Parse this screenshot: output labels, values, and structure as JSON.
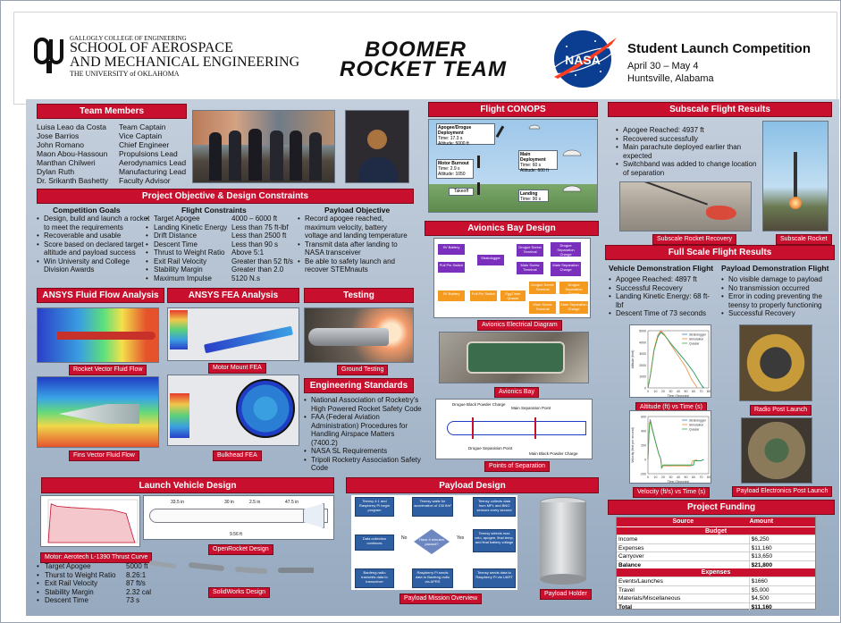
{
  "header": {
    "college_small": "GALLOGLY COLLEGE OF ENGINEERING",
    "school_line1": "SCHOOL OF AEROSPACE",
    "school_line2": "AND MECHANICAL ENGINEERING",
    "university_line": "THE UNIVERSITY of OKLAHOMA",
    "team_logo_line1": "BOOMER",
    "team_logo_line2": "ROCKET TEAM",
    "nasa_logo": "NASA",
    "event_title": "Student Launch Competition",
    "event_dates": "April 30 – May 4",
    "event_location": "Huntsville, Alabama"
  },
  "team": {
    "title": "Team Members",
    "members": [
      {
        "name": "Luisa Leao da Costa",
        "role": "Team Captain"
      },
      {
        "name": "Jose Barrios",
        "role": "Vice Captain"
      },
      {
        "name": "John Romano",
        "role": "Chief Engineer"
      },
      {
        "name": "Maon Abou-Hassoun",
        "role": "Propulsions Lead"
      },
      {
        "name": "Manthan Chilweri",
        "role": "Aerodynamics Lead"
      },
      {
        "name": "Dylan Ruth",
        "role": "Manufacturing Lead"
      },
      {
        "name": "Dr. Srikanth Bashetty",
        "role": "Faculty Advisor"
      }
    ]
  },
  "objectives": {
    "title": "Project Objective & Design Constraints",
    "goals_title": "Competition Goals",
    "goals": [
      "Design, build and launch a rocket to meet the requirements",
      "Recoverable and usable",
      "Score based on declared target altitude and payload success",
      "Win University and College Division Awards"
    ],
    "constraints_title": "Flight Constraints",
    "constraints": [
      {
        "label": "Target Apogee",
        "value": "4000 – 6000 ft"
      },
      {
        "label": "Landing Kinetic Energy",
        "value": "Less than 75 ft-lbf"
      },
      {
        "label": "Drift Distance",
        "value": "Less than 2500 ft"
      },
      {
        "label": "Descent Time",
        "value": "Less than 90 s"
      },
      {
        "label": "Thrust to Weight Ratio",
        "value": "Above 5:1"
      },
      {
        "label": "Exit Rail Velocity",
        "value": "Greater than 52 ft/s"
      },
      {
        "label": "Stability Margin",
        "value": "Greater than 2.0"
      },
      {
        "label": "Maximum Impulse",
        "value": "5120 N.s"
      }
    ],
    "payload_title": "Payload Objective",
    "payload": [
      "Record apogee reached, maximum velocity, battery voltage and landing temperature",
      "Transmit data after landing to NASA transceiver",
      "Be able to safety launch and recover STEMnauts"
    ]
  },
  "conops": {
    "title": "Flight CONOPS",
    "apogee_label": "Apogee/Drogue Deployment",
    "apogee_time": "Time: 17.3 s",
    "apogee_alt": "Altitude: 5000 ft",
    "burnout_label": "Motor Burnout",
    "burnout_time": "Time: 2.9 s",
    "burnout_alt": "Altitude: 1050",
    "main_label": "Main Deployment",
    "main_time": "Time: 60 s",
    "main_alt": "Altitude: 600 ft",
    "takeoff_label": "Takeoff",
    "landing_label": "Landing",
    "landing_time": "Time: 90 s"
  },
  "subscale": {
    "title": "Subscale Flight Results",
    "bullets": [
      "Apogee Reached: 4937 ft",
      "Recovered successfully",
      "Main parachute deployed earlier than expected",
      "Switchband was added to change location of separation"
    ],
    "photo1_caption": "Subscale Rocket Recovery",
    "photo2_caption": "Subscale Rocket"
  },
  "avionics": {
    "title": "Avionics Bay Design",
    "blocks": [
      "9V Battery",
      "Stratologger",
      "Drogue Screw Terminal",
      "Drogue Separation Charge",
      "Pull Pin Switch",
      "Main Screw Terminal",
      "Main Separation Charge",
      "9V Battery",
      "Pull Pin Switch",
      "EggTimer Quasar",
      "Drogue Screw Terminal",
      "Drogue Separation Charge",
      "Main Screw Terminal",
      "Main Separation Charge"
    ],
    "diagram_caption": "Avionics Electrical Diagram",
    "bay_caption": "Avionics Bay",
    "sep_labels": [
      "Drogue Black Powder Charge",
      "Main Separation Point",
      "Drogue Separation Point",
      "Main Black Powder Charge"
    ],
    "sep_caption": "Points of Separation"
  },
  "fullscale": {
    "title": "Full Scale Flight Results",
    "vehicle_title": "Vehicle Demonstration Flight",
    "vehicle_bullets": [
      "Apogee Reached: 4897 ft",
      "Successful Recovery",
      "Landing Kinetic Energy: 68 ft-lbf",
      "Descent Time of 73 seconds"
    ],
    "payload_title": "Payload Demonstration Flight",
    "payload_bullets": [
      "No visible damage to payload",
      "No transmission occurred",
      "Error in coding preventing the teensy to properly functioning",
      "Successful Recovery"
    ],
    "alt_caption": "Altitude (ft) vs Time (s)",
    "vel_caption": "Velocity (ft/s) vs Time (s)",
    "radio_caption": "Radio Post Launch",
    "electronics_caption": "Payload Electronics Post Launch"
  },
  "ansys_fluid": {
    "title": "ANSYS Fluid Flow Analysis",
    "caption1": "Rocket Vector Fluid Flow",
    "caption2": "Fins Vector Fluid Flow"
  },
  "ansys_fea": {
    "title": "ANSYS FEA Analysis",
    "caption1": "Motor Mount FEA",
    "caption2": "Bulkhead FEA"
  },
  "testing": {
    "title": "Testing",
    "caption": "Ground Testing"
  },
  "standards": {
    "title": "Engineering Standards",
    "bullets": [
      "National Association of Rocketry's High Powered Rocket Safety Code",
      "FAA (Federal Aviation Administration) Procedures for Handling Airspace Matters (7400.2)",
      "NASA SL Requirements",
      "Tripoli Rocketry Association Safety Code"
    ]
  },
  "launch": {
    "title": "Launch Vehicle Design",
    "thrust_caption": "Motor: Aerotech L-1390 Thrust Curve",
    "openrocket_caption": "OpenRocket Design",
    "dims": [
      "33.5 in",
      "30 in",
      "2.5 in",
      "47.5 in",
      "9.56 ft"
    ],
    "solidworks_caption": "SolidWorks Design",
    "specs": [
      {
        "label": "Target Apogee",
        "value": "5000 ft"
      },
      {
        "label": "Thurst to Weight Ratio",
        "value": "8.26:1"
      },
      {
        "label": "Exit Rail Velocity",
        "value": "87 ft/s"
      },
      {
        "label": "Stability Margin",
        "value": "2.32 cal"
      },
      {
        "label": "Descent Time",
        "value": "73 s"
      }
    ]
  },
  "payload_design": {
    "title": "Payload Design",
    "flow": [
      "Teensy 4.1 and Raspberry Pi begin program",
      "Teensy waits for acceleration of 130 ft/s²",
      "Teensy collects data from MPL and BNO sensors every second",
      "Data collection continues",
      "Have 4 minutes passed?",
      "Teensy selects max velo, apogee, final temp, and final battery voltage",
      "Baofeng radio transmits data to transceiver",
      "Raspberry Pi sends data to Baofeng radio via APRS",
      "Teensy sends data to Raspberry Pi via UART"
    ],
    "flow_no": "No",
    "flow_yes": "Yes",
    "flow_caption": "Payload Mission Overview",
    "holder_caption": "Payload Holder"
  },
  "funding": {
    "title": "Project Funding",
    "col_source": "Source",
    "col_amount": "Amount",
    "budget_header": "Budget",
    "budget_rows": [
      {
        "source": "Income",
        "amount": "$6,250"
      },
      {
        "source": "Expenses",
        "amount": "$11,160"
      },
      {
        "source": "Carryover",
        "amount": "$13,650"
      },
      {
        "source": "Balance",
        "amount": "$21,800"
      }
    ],
    "expenses_header": "Expenses",
    "expense_rows": [
      {
        "source": "Events/Launches",
        "amount": "$1660"
      },
      {
        "source": "Travel",
        "amount": "$5,000"
      },
      {
        "source": "Materials/Miscellaneous",
        "amount": "$4,500"
      },
      {
        "source": "Total",
        "amount": "$11,160"
      }
    ]
  },
  "chart_data": [
    {
      "type": "line",
      "title": "",
      "xlabel": "Time (Seconds)",
      "ylabel": "Altitude (feet)",
      "xlim": [
        0,
        80
      ],
      "ylim": [
        0,
        5000
      ],
      "xticks": [
        0,
        10,
        20,
        30,
        40,
        50,
        60,
        70,
        80
      ],
      "yticks": [
        0,
        1000,
        2000,
        3000,
        4000,
        5000
      ],
      "legend": "top-right",
      "series": [
        {
          "name": "Stratologger",
          "color": "#2a7fd4",
          "x": [
            0,
            3,
            8,
            13,
            17,
            22,
            30,
            40,
            50,
            60,
            70,
            73
          ],
          "y": [
            0,
            1050,
            3300,
            4500,
            4897,
            4600,
            3900,
            3100,
            2300,
            1400,
            300,
            0
          ]
        },
        {
          "name": "Simulation",
          "color": "#f08a3c",
          "x": [
            0,
            3,
            8,
            13,
            17,
            22,
            30,
            40,
            50,
            57,
            60,
            65
          ],
          "y": [
            0,
            1100,
            3400,
            4650,
            5000,
            4650,
            3800,
            2800,
            1800,
            800,
            500,
            0
          ]
        },
        {
          "name": "Quasar",
          "color": "#3aa84a",
          "x": [
            0,
            3,
            8,
            13,
            17,
            22,
            30,
            40,
            50,
            60,
            70,
            74
          ],
          "y": [
            0,
            1000,
            3250,
            4450,
            4850,
            4580,
            3880,
            3080,
            2280,
            1380,
            280,
            0
          ]
        }
      ]
    },
    {
      "type": "line",
      "title": "",
      "xlabel": "Time (Seconds)",
      "ylabel": "Velocity (feet per second)",
      "xlim": [
        0,
        80
      ],
      "ylim": [
        -200,
        600
      ],
      "xticks": [
        0,
        10,
        20,
        30,
        40,
        50,
        60,
        70,
        80
      ],
      "yticks": [
        -200,
        0,
        200,
        400,
        600
      ],
      "legend": "top-right",
      "series": [
        {
          "name": "Stratologger",
          "color": "#2a7fd4",
          "x": [
            0,
            1,
            2,
            3,
            6,
            10,
            14,
            17,
            18,
            20,
            30,
            50,
            60,
            61,
            70,
            73
          ],
          "y": [
            0,
            300,
            500,
            560,
            420,
            250,
            90,
            0,
            -130,
            -80,
            -80,
            -80,
            -80,
            -20,
            -20,
            0
          ]
        },
        {
          "name": "Simulation",
          "color": "#f08a3c",
          "x": [
            0,
            1,
            2,
            3,
            6,
            10,
            14,
            17,
            18,
            20,
            30,
            50,
            57,
            58,
            65
          ],
          "y": [
            0,
            320,
            510,
            540,
            410,
            240,
            80,
            0,
            -120,
            -90,
            -90,
            -90,
            -90,
            -25,
            0
          ]
        },
        {
          "name": "Quasar",
          "color": "#3aa84a",
          "x": [
            0,
            1,
            2,
            3,
            6,
            10,
            14,
            17,
            18,
            20,
            30,
            50,
            60,
            61,
            70,
            74
          ],
          "y": [
            0,
            280,
            480,
            530,
            400,
            240,
            85,
            0,
            -110,
            -78,
            -78,
            -78,
            -78,
            -18,
            -18,
            0
          ]
        }
      ]
    },
    {
      "type": "line",
      "title": "",
      "xlabel": "",
      "ylabel": "",
      "legend": "none",
      "series": [
        {
          "name": "",
          "color": "#c8102e",
          "x": [
            0,
            0.1,
            0.3,
            0.8,
            1.5,
            2.2,
            2.7,
            2.9,
            3.0
          ],
          "y": [
            0,
            1600,
            1500,
            1450,
            1400,
            1350,
            1200,
            400,
            0
          ]
        }
      ]
    }
  ],
  "colors": {
    "accent": "#c8102e",
    "flowchart_blue": "#2f5fa3",
    "avionics_purple": "#7b2fbd",
    "avionics_orange": "#f39a1f",
    "team_logo": "#111111",
    "nasa_blue": "#0b3d91"
  }
}
